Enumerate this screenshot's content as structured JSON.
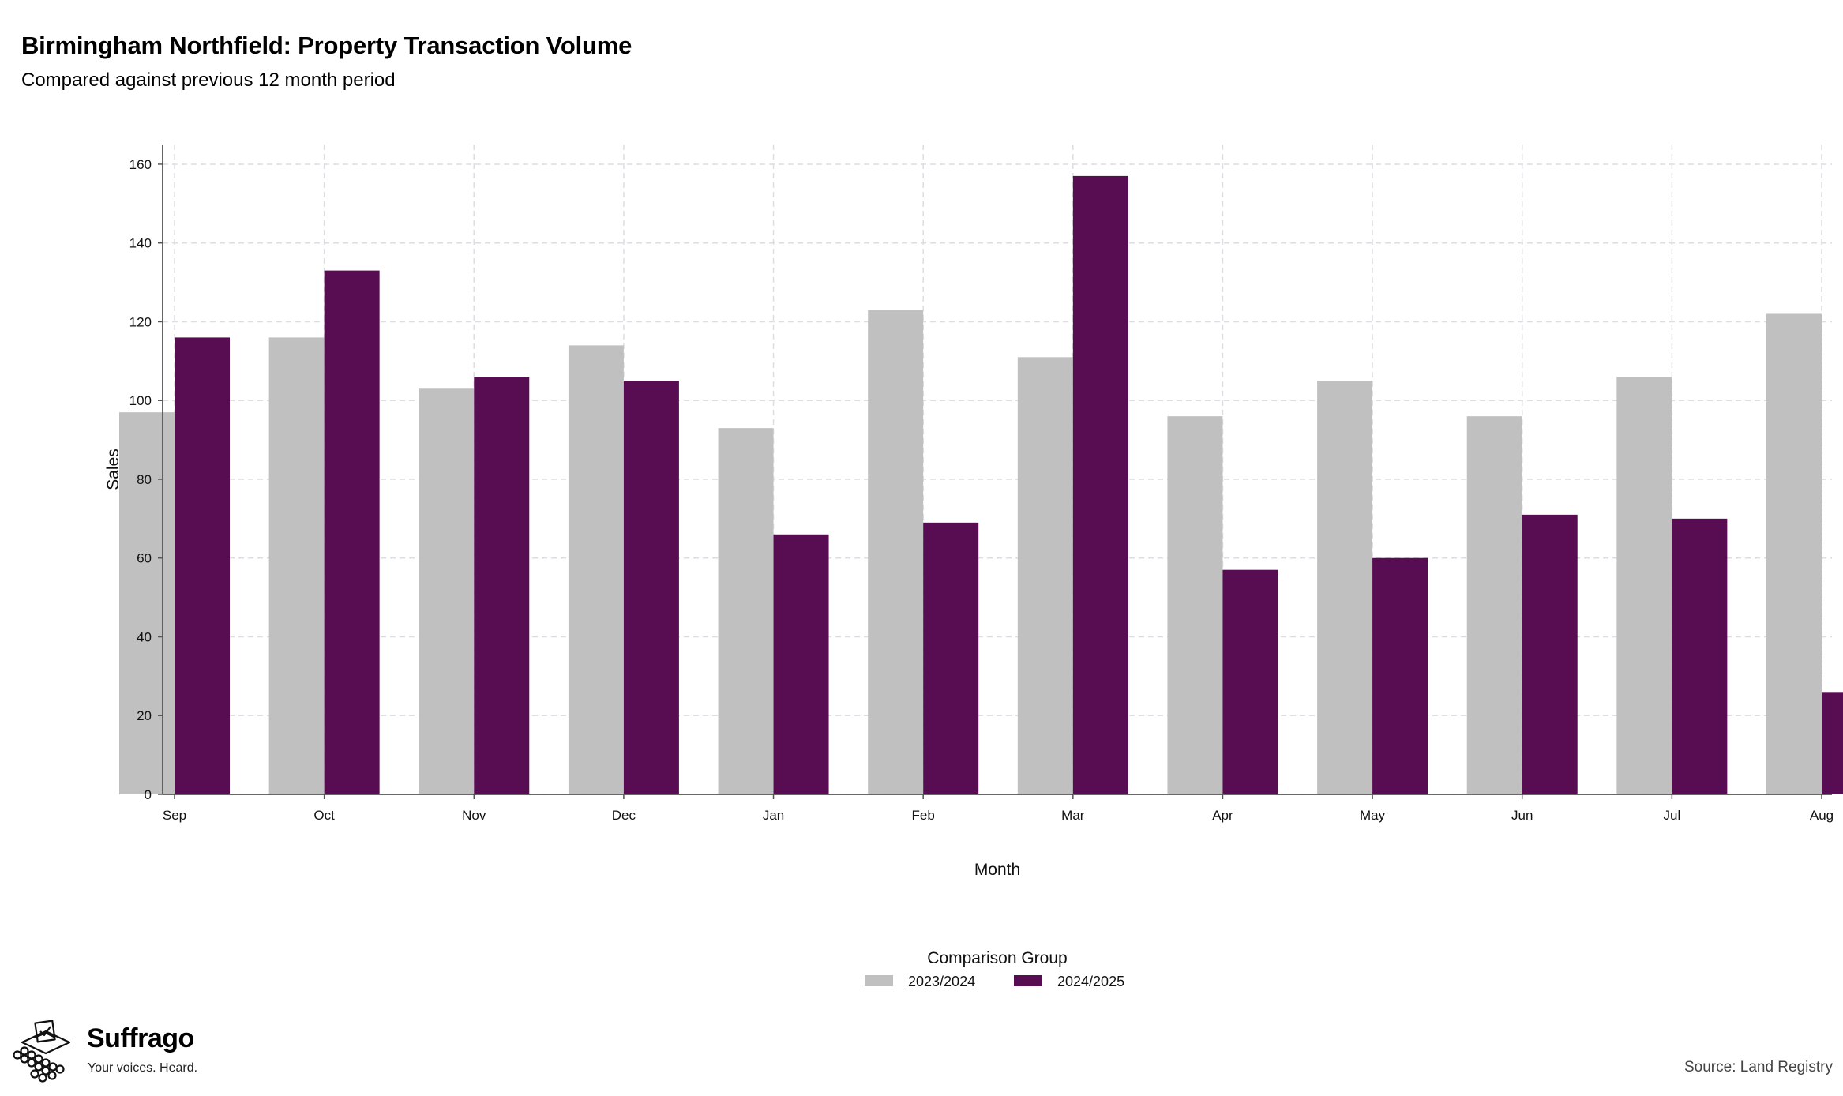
{
  "header": {
    "title": "Birmingham Northfield: Property Transaction Volume",
    "subtitle": "Compared against previous 12 month period"
  },
  "colors": {
    "series_2023_2024": "#c0c0c0",
    "series_2024_2025": "#580c52",
    "grid": "#dddde3"
  },
  "chart_data": {
    "type": "bar",
    "title": "Birmingham Northfield: Property Transaction Volume",
    "subtitle": "Compared against previous 12 month period",
    "xlabel": "Month",
    "ylabel": "Sales",
    "categories": [
      "Sep",
      "Oct",
      "Nov",
      "Dec",
      "Jan",
      "Feb",
      "Mar",
      "Apr",
      "May",
      "Jun",
      "Jul",
      "Aug"
    ],
    "series": [
      {
        "name": "2023/2024",
        "color": "#c0c0c0",
        "values": [
          97,
          116,
          103,
          114,
          93,
          123,
          111,
          96,
          105,
          96,
          106,
          122
        ]
      },
      {
        "name": "2024/2025",
        "color": "#580c52",
        "values": [
          116,
          133,
          106,
          105,
          66,
          69,
          157,
          57,
          60,
          71,
          70,
          26
        ]
      }
    ],
    "ylim": [
      0,
      165
    ],
    "yticks": [
      0,
      20,
      40,
      60,
      80,
      100,
      120,
      140,
      160
    ],
    "grid": true,
    "legend_title": "Comparison Group",
    "legend_position": "bottom-center"
  },
  "branding": {
    "logo_icon": "ballot-box-icon",
    "name": "Suffrago",
    "tagline": "Your voices. Heard."
  },
  "footer": {
    "source": "Source: Land Registry"
  }
}
